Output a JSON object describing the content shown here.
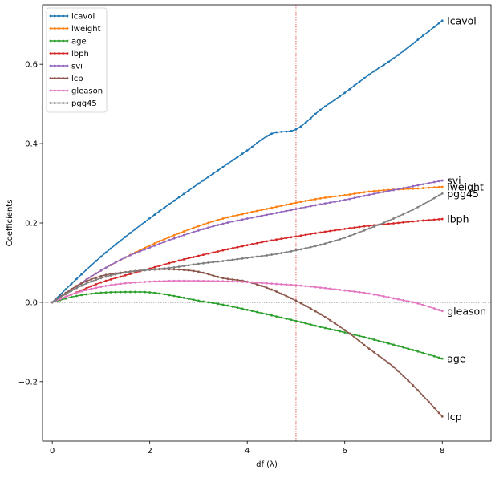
{
  "chart_data": {
    "type": "line",
    "title": "",
    "xlabel": "df (λ)",
    "ylabel": "Coefficients",
    "xlim": [
      -0.2,
      9.0
    ],
    "ylim": [
      -0.35,
      0.75
    ],
    "xticks": [
      0,
      2,
      4,
      6,
      8
    ],
    "yticks": [
      -0.2,
      0.0,
      0.2,
      0.4,
      0.6
    ],
    "xtick_labels": [
      "0",
      "2",
      "4",
      "6",
      "8"
    ],
    "ytick_labels": [
      "−0.2",
      "0.0",
      "0.2",
      "0.4",
      "0.6"
    ],
    "grid": false,
    "legend_position": "top-left",
    "reference_lines": {
      "vertical_x": 5,
      "vertical_color": "#d62728",
      "horizontal_y": 0,
      "horizontal_color": "#000000"
    },
    "series": [
      {
        "name": "lcavol",
        "color": "#1f77b4",
        "end_label": "lcavol",
        "x": [
          0,
          0.5,
          1,
          1.5,
          2,
          2.5,
          3,
          3.5,
          4,
          4.5,
          5,
          5.5,
          6,
          6.5,
          7,
          7.5,
          8
        ],
        "y": [
          0.0,
          0.059,
          0.115,
          0.165,
          0.212,
          0.256,
          0.299,
          0.341,
          0.383,
          0.425,
          0.436,
          0.485,
          0.528,
          0.574,
          0.615,
          0.662,
          0.71
        ]
      },
      {
        "name": "lweight",
        "color": "#ff7f0e",
        "end_label": "lweight",
        "x": [
          0,
          0.5,
          1,
          1.5,
          2,
          2.5,
          3,
          3.5,
          4,
          4.5,
          5,
          5.5,
          6,
          6.5,
          7,
          7.5,
          8
        ],
        "y": [
          0.0,
          0.041,
          0.08,
          0.113,
          0.143,
          0.169,
          0.192,
          0.211,
          0.225,
          0.238,
          0.251,
          0.262,
          0.27,
          0.279,
          0.284,
          0.287,
          0.291
        ]
      },
      {
        "name": "age",
        "color": "#2ca02c",
        "end_label": "age",
        "x": [
          0,
          0.5,
          1,
          1.5,
          2,
          2.5,
          3,
          3.5,
          4,
          4.5,
          5,
          5.5,
          6,
          6.5,
          7,
          7.5,
          8
        ],
        "y": [
          0.0,
          0.016,
          0.024,
          0.026,
          0.025,
          0.016,
          0.004,
          -0.006,
          -0.019,
          -0.033,
          -0.047,
          -0.062,
          -0.076,
          -0.091,
          -0.107,
          -0.124,
          -0.142
        ]
      },
      {
        "name": "lbph",
        "color": "#d62728",
        "end_label": "lbph",
        "x": [
          0,
          0.5,
          1,
          1.5,
          2,
          2.5,
          3,
          3.5,
          4,
          4.5,
          5,
          5.5,
          6,
          6.5,
          7,
          7.5,
          8
        ],
        "y": [
          0.0,
          0.025,
          0.05,
          0.068,
          0.085,
          0.102,
          0.117,
          0.131,
          0.144,
          0.156,
          0.166,
          0.176,
          0.185,
          0.193,
          0.199,
          0.205,
          0.21
        ]
      },
      {
        "name": "svi",
        "color": "#9467bd",
        "end_label": "svi",
        "x": [
          0,
          0.5,
          1,
          1.5,
          2,
          2.5,
          3,
          3.5,
          4,
          4.5,
          5,
          5.5,
          6,
          6.5,
          7,
          7.5,
          8
        ],
        "y": [
          0.0,
          0.041,
          0.08,
          0.113,
          0.138,
          0.161,
          0.181,
          0.198,
          0.211,
          0.223,
          0.235,
          0.247,
          0.258,
          0.271,
          0.283,
          0.295,
          0.307
        ]
      },
      {
        "name": "lcp",
        "color": "#8c564b",
        "end_label": "lcp",
        "x": [
          0,
          0.5,
          1,
          1.5,
          2,
          2.5,
          3,
          3.5,
          4,
          4.5,
          5,
          5.5,
          6,
          6.5,
          7,
          7.5,
          8
        ],
        "y": [
          0.0,
          0.041,
          0.066,
          0.076,
          0.082,
          0.083,
          0.077,
          0.061,
          0.052,
          0.032,
          0.004,
          -0.03,
          -0.07,
          -0.117,
          -0.163,
          -0.222,
          -0.288
        ]
      },
      {
        "name": "gleason",
        "color": "#e377c2",
        "end_label": "gleason",
        "x": [
          0,
          0.5,
          1,
          1.5,
          2,
          2.5,
          3,
          3.5,
          4,
          4.5,
          5,
          5.5,
          6,
          6.5,
          7,
          7.5,
          8
        ],
        "y": [
          0.0,
          0.024,
          0.039,
          0.048,
          0.052,
          0.054,
          0.054,
          0.053,
          0.051,
          0.047,
          0.043,
          0.037,
          0.03,
          0.022,
          0.01,
          -0.003,
          -0.022
        ]
      },
      {
        "name": "pgg45",
        "color": "#7f7f7f",
        "end_label": "pgg45",
        "x": [
          0,
          0.5,
          1,
          1.5,
          2,
          2.5,
          3,
          3.5,
          4,
          4.5,
          5,
          5.5,
          6,
          6.5,
          7,
          7.5,
          8
        ],
        "y": [
          0.0,
          0.036,
          0.061,
          0.075,
          0.082,
          0.088,
          0.097,
          0.104,
          0.112,
          0.12,
          0.131,
          0.145,
          0.163,
          0.186,
          0.211,
          0.24,
          0.274
        ]
      }
    ]
  }
}
